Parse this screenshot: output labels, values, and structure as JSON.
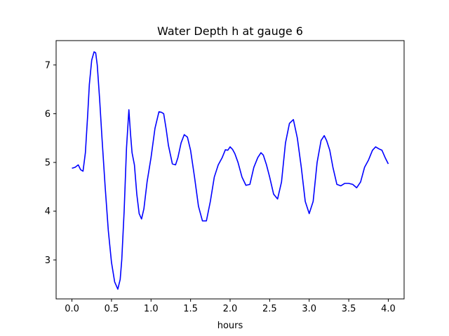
{
  "chart_data": {
    "type": "line",
    "title": "Water Depth h at gauge 6",
    "xlabel": "hours",
    "ylabel": "",
    "xlim": [
      -0.2,
      4.2
    ],
    "ylim": [
      2.2,
      7.5
    ],
    "xticks": [
      0.0,
      0.5,
      1.0,
      1.5,
      2.0,
      2.5,
      3.0,
      3.5,
      4.0
    ],
    "xtick_labels": [
      "0.0",
      "0.5",
      "1.0",
      "1.5",
      "2.0",
      "2.5",
      "3.0",
      "3.5",
      "4.0"
    ],
    "yticks": [
      3,
      4,
      5,
      6,
      7
    ],
    "ytick_labels": [
      "3",
      "4",
      "5",
      "6",
      "7"
    ],
    "grid": false,
    "line_color": "#0000ff",
    "series": [
      {
        "x": [
          0.0,
          0.04,
          0.08,
          0.11,
          0.14,
          0.17,
          0.2,
          0.22,
          0.25,
          0.28,
          0.3,
          0.32,
          0.35,
          0.38,
          0.42,
          0.46,
          0.5,
          0.54,
          0.58,
          0.61,
          0.63,
          0.66,
          0.69,
          0.72,
          0.74,
          0.76,
          0.79,
          0.82,
          0.85,
          0.88,
          0.91,
          0.95,
          1.0,
          1.05,
          1.1,
          1.13,
          1.16,
          1.19,
          1.22,
          1.27,
          1.31,
          1.34,
          1.38,
          1.42,
          1.46,
          1.5,
          1.55,
          1.6,
          1.65,
          1.7,
          1.75,
          1.8,
          1.85,
          1.9,
          1.94,
          1.97,
          2.0,
          2.03,
          2.06,
          2.1,
          2.15,
          2.2,
          2.25,
          2.3,
          2.35,
          2.39,
          2.42,
          2.46,
          2.5,
          2.55,
          2.6,
          2.65,
          2.7,
          2.75,
          2.8,
          2.85,
          2.9,
          2.95,
          3.0,
          3.05,
          3.1,
          3.15,
          3.19,
          3.22,
          3.26,
          3.3,
          3.35,
          3.4,
          3.45,
          3.5,
          3.55,
          3.6,
          3.65,
          3.7,
          3.75,
          3.8,
          3.84,
          3.88,
          3.92,
          3.96,
          4.0
        ],
        "values": [
          4.88,
          4.9,
          4.95,
          4.85,
          4.82,
          5.2,
          6.0,
          6.6,
          7.1,
          7.27,
          7.25,
          7.0,
          6.3,
          5.5,
          4.5,
          3.6,
          2.95,
          2.55,
          2.4,
          2.6,
          3.0,
          4.0,
          5.3,
          6.08,
          5.6,
          5.2,
          4.95,
          4.35,
          3.95,
          3.84,
          4.05,
          4.6,
          5.1,
          5.7,
          6.04,
          6.03,
          6.0,
          5.7,
          5.35,
          4.97,
          4.95,
          5.1,
          5.4,
          5.57,
          5.52,
          5.25,
          4.7,
          4.1,
          3.8,
          3.8,
          4.2,
          4.7,
          4.95,
          5.1,
          5.26,
          5.25,
          5.32,
          5.27,
          5.18,
          5.0,
          4.7,
          4.53,
          4.55,
          4.9,
          5.1,
          5.2,
          5.15,
          4.95,
          4.7,
          4.35,
          4.25,
          4.6,
          5.4,
          5.8,
          5.88,
          5.5,
          4.9,
          4.2,
          3.95,
          4.2,
          5.0,
          5.45,
          5.55,
          5.45,
          5.25,
          4.9,
          4.55,
          4.52,
          4.57,
          4.57,
          4.55,
          4.48,
          4.6,
          4.9,
          5.05,
          5.25,
          5.32,
          5.28,
          5.25,
          5.1,
          4.97
        ]
      }
    ]
  }
}
